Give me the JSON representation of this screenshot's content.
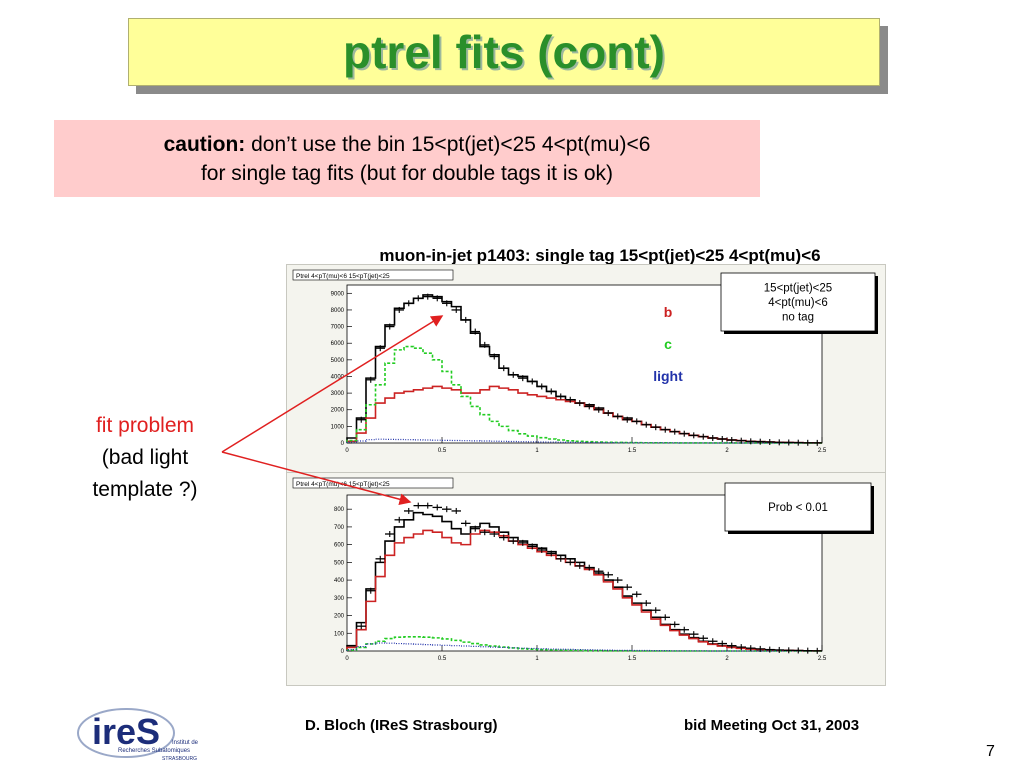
{
  "slide": {
    "title": "ptrel fits (cont)",
    "caution_label": "caution:",
    "caution_text1": " don’t use the bin 15<pt(jet)<25  4<pt(mu)<6",
    "caution_text2": "for single tag fits  (but for double tags it is ok)",
    "note_line1": "fit problem",
    "note_line2": "(bad light",
    "note_line3": "template ?)",
    "footer_left": "D. Bloch (IReS Strasbourg)",
    "footer_right": "bid Meeting   Oct  31, 2003",
    "page_number": "7",
    "logo_text": "ireS",
    "logo_sub1": "Institut de",
    "logo_sub2": "Recherches Subatomiques",
    "logo_sub3": "STRASBOURG"
  },
  "colors": {
    "title": "#2a8f2a",
    "title_bg": "#ffff99",
    "caution_bg": "#ffcccc",
    "b": "#cc2222",
    "c": "#22cc22",
    "light": "#2233aa",
    "data": "#000000",
    "arrow": "#e02020"
  },
  "chart_data": [
    {
      "type": "line",
      "title": "muon-in-jet p1403: single tag 15<pt(jet)<25 4<pt(mu)<6",
      "header_label": "Ptrel 4<pT(mu)<6 15<pT(jet)<25",
      "xlim": [
        0,
        2.5
      ],
      "ylim": [
        0,
        9500
      ],
      "x_ticks": [
        "0",
        "0.5",
        "1",
        "1.5",
        "2",
        "2.5"
      ],
      "y_ticks": [
        "0",
        "1000",
        "2000",
        "3000",
        "4000",
        "5000",
        "6000",
        "7000",
        "8000",
        "9000"
      ],
      "info_box": [
        "15<pt(jet)<25",
        "4<pt(mu)<6",
        "no tag"
      ],
      "legend": [
        "b",
        "c",
        "light"
      ],
      "x": [
        0.025,
        0.075,
        0.125,
        0.175,
        0.225,
        0.275,
        0.325,
        0.375,
        0.425,
        0.475,
        0.525,
        0.575,
        0.625,
        0.675,
        0.725,
        0.775,
        0.825,
        0.875,
        0.925,
        0.975,
        1.025,
        1.075,
        1.125,
        1.175,
        1.225,
        1.275,
        1.325,
        1.375,
        1.425,
        1.475,
        1.525,
        1.575,
        1.625,
        1.675,
        1.725,
        1.775,
        1.825,
        1.875,
        1.925,
        1.975,
        2.025,
        2.075,
        2.125,
        2.175,
        2.225,
        2.275,
        2.325,
        2.375,
        2.425,
        2.475
      ],
      "series": [
        {
          "name": "total",
          "values": [
            300,
            1500,
            3900,
            5800,
            7100,
            8100,
            8400,
            8700,
            8900,
            8800,
            8500,
            8200,
            7400,
            6600,
            5800,
            5300,
            4500,
            4100,
            4000,
            3700,
            3400,
            3100,
            2800,
            2600,
            2400,
            2300,
            2100,
            1800,
            1600,
            1500,
            1300,
            1100,
            950,
            800,
            680,
            560,
            460,
            380,
            300,
            240,
            180,
            140,
            100,
            80,
            60,
            40,
            30,
            20,
            12,
            8
          ]
        },
        {
          "name": "b",
          "values": [
            100,
            600,
            1500,
            2400,
            2700,
            3000,
            3100,
            3200,
            3300,
            3400,
            3300,
            3200,
            3000,
            3000,
            3200,
            3400,
            3300,
            3200,
            3000,
            2900,
            2800,
            2700,
            2600,
            2500,
            2400,
            2200,
            2000,
            1800,
            1600,
            1400,
            1300,
            1100,
            950,
            800,
            680,
            560,
            460,
            380,
            300,
            240,
            180,
            140,
            100,
            80,
            60,
            40,
            30,
            20,
            12,
            8
          ]
        },
        {
          "name": "c",
          "values": [
            150,
            800,
            2300,
            3500,
            4800,
            5600,
            5800,
            5700,
            5400,
            5000,
            4300,
            3500,
            2800,
            2200,
            1700,
            1300,
            1000,
            750,
            550,
            420,
            320,
            240,
            180,
            130,
            100,
            80,
            60,
            45,
            35,
            28,
            20,
            15,
            12,
            9,
            7,
            5,
            4,
            3,
            2,
            2,
            1,
            1,
            1,
            0,
            0,
            0,
            0,
            0,
            0,
            0
          ]
        },
        {
          "name": "light",
          "values": [
            50,
            120,
            200,
            230,
            220,
            210,
            200,
            190,
            180,
            170,
            160,
            150,
            140,
            130,
            120,
            110,
            100,
            90,
            80,
            70,
            60,
            55,
            50,
            45,
            40,
            35,
            30,
            25,
            20,
            18,
            15,
            12,
            10,
            8,
            6,
            5,
            4,
            3,
            2,
            2,
            1,
            1,
            1,
            0,
            0,
            0,
            0,
            0,
            0,
            0
          ]
        },
        {
          "name": "data",
          "values": [
            null,
            1400,
            3800,
            5700,
            7000,
            8000,
            8400,
            8700,
            8800,
            8700,
            8400,
            8000,
            7400,
            6700,
            5900,
            5200,
            4500,
            4100,
            3900,
            3700,
            3400,
            3100,
            2800,
            2600,
            2400,
            2200,
            2000,
            1800,
            1600,
            1400,
            1300,
            1100,
            950,
            800,
            680,
            560,
            460,
            380,
            300,
            240,
            180,
            140,
            100,
            80,
            60,
            40,
            30,
            20,
            12,
            8
          ]
        }
      ]
    },
    {
      "type": "line",
      "header_label": "Ptrel 4<pT(mu)<6 15<pT(jet)<25",
      "xlim": [
        0,
        2.5
      ],
      "ylim": [
        0,
        880
      ],
      "x_ticks": [
        "0",
        "0.5",
        "1",
        "1.5",
        "2",
        "2.5"
      ],
      "y_ticks": [
        "0",
        "100",
        "200",
        "300",
        "400",
        "500",
        "600",
        "700",
        "800"
      ],
      "info_box": [
        "Prob < 0.01"
      ],
      "x": [
        0.025,
        0.075,
        0.125,
        0.175,
        0.225,
        0.275,
        0.325,
        0.375,
        0.425,
        0.475,
        0.525,
        0.575,
        0.625,
        0.675,
        0.725,
        0.775,
        0.825,
        0.875,
        0.925,
        0.975,
        1.025,
        1.075,
        1.125,
        1.175,
        1.225,
        1.275,
        1.325,
        1.375,
        1.425,
        1.475,
        1.525,
        1.575,
        1.625,
        1.675,
        1.725,
        1.775,
        1.825,
        1.875,
        1.925,
        1.975,
        2.025,
        2.075,
        2.125,
        2.175,
        2.225,
        2.275,
        2.325,
        2.375,
        2.425,
        2.475
      ],
      "series": [
        {
          "name": "total",
          "values": [
            30,
            160,
            350,
            500,
            620,
            700,
            740,
            780,
            770,
            760,
            730,
            690,
            660,
            700,
            720,
            700,
            670,
            640,
            620,
            600,
            580,
            560,
            540,
            520,
            500,
            470,
            440,
            400,
            360,
            310,
            270,
            230,
            190,
            150,
            120,
            95,
            75,
            55,
            40,
            30,
            22,
            16,
            12,
            9,
            6,
            4,
            3,
            2,
            1,
            1
          ]
        },
        {
          "name": "b",
          "values": [
            20,
            120,
            280,
            420,
            540,
            610,
            640,
            660,
            680,
            670,
            640,
            610,
            600,
            660,
            680,
            670,
            650,
            620,
            600,
            580,
            560,
            540,
            520,
            500,
            480,
            460,
            430,
            390,
            350,
            300,
            260,
            220,
            180,
            145,
            115,
            90,
            70,
            52,
            38,
            28,
            20,
            15,
            11,
            8,
            6,
            4,
            3,
            2,
            1,
            1
          ]
        },
        {
          "name": "c",
          "values": [
            5,
            20,
            40,
            55,
            70,
            78,
            80,
            80,
            78,
            74,
            68,
            60,
            50,
            42,
            34,
            28,
            22,
            17,
            13,
            10,
            8,
            6,
            5,
            4,
            3,
            2,
            2,
            1,
            1,
            1,
            0,
            0,
            0,
            0,
            0,
            0,
            0,
            0,
            0,
            0,
            0,
            0,
            0,
            0,
            0,
            0,
            0,
            0,
            0,
            0
          ]
        },
        {
          "name": "light",
          "values": [
            8,
            25,
            40,
            45,
            44,
            42,
            40,
            38,
            36,
            34,
            32,
            30,
            28,
            26,
            24,
            22,
            20,
            18,
            16,
            14,
            12,
            11,
            10,
            9,
            8,
            7,
            6,
            5,
            4,
            4,
            3,
            3,
            2,
            2,
            1,
            1,
            1,
            1,
            0,
            0,
            0,
            0,
            0,
            0,
            0,
            0,
            0,
            0,
            0,
            0
          ]
        },
        {
          "name": "data",
          "values": [
            null,
            140,
            340,
            520,
            660,
            740,
            790,
            820,
            820,
            810,
            800,
            790,
            720,
            690,
            670,
            660,
            640,
            620,
            610,
            590,
            570,
            550,
            520,
            500,
            480,
            470,
            450,
            430,
            400,
            360,
            320,
            270,
            230,
            190,
            150,
            120,
            95,
            72,
            55,
            42,
            30,
            22,
            16,
            12,
            8,
            6,
            4,
            3,
            2,
            1
          ]
        }
      ]
    }
  ]
}
